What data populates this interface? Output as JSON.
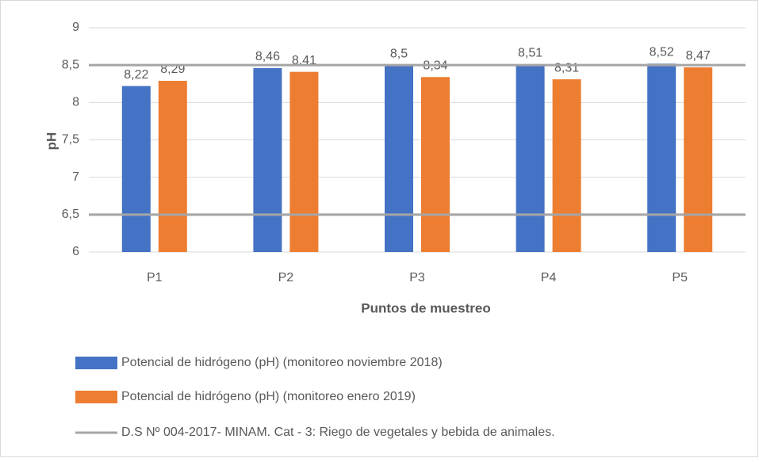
{
  "chart_data": {
    "type": "bar",
    "categories": [
      "P1",
      "P2",
      "P3",
      "P4",
      "P5"
    ],
    "series": [
      {
        "name": "Potencial de hidrógeno (pH) (monitoreo noviembre 2018)",
        "color": "#4472c4",
        "values": [
          8.22,
          8.46,
          8.5,
          8.51,
          8.52
        ],
        "value_labels": [
          "8,22",
          "8,46",
          "8,5",
          "8,51",
          "8,52"
        ]
      },
      {
        "name": "Potencial de hidrógeno (pH) (monitoreo enero 2019)",
        "color": "#ed7d31",
        "values": [
          8.29,
          8.41,
          8.34,
          8.31,
          8.47
        ],
        "value_labels": [
          "8,29",
          "8,41",
          "8,34",
          "8,31",
          "8,47"
        ]
      }
    ],
    "reference_lines": {
      "name": "D.S Nº 004-2017- MINAM. Cat - 3: Riego de vegetales y bebida de animales.",
      "color": "#a5a5a5",
      "values": [
        8.5,
        6.5
      ]
    },
    "xlabel": "Puntos de muestreo",
    "ylabel": "pH",
    "ylim": [
      6,
      9
    ],
    "yticks": [
      6,
      {
        "value": 6.5,
        "label": "6,5"
      },
      7,
      {
        "value": 7.5,
        "label": "7,5"
      },
      8,
      {
        "value": 8.5,
        "label": "8,5"
      },
      9
    ],
    "grid": true
  }
}
